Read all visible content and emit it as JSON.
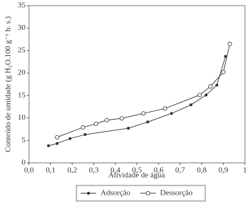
{
  "chart_data": {
    "type": "scatter",
    "x_label": "Atividade de água",
    "y_label": "Conteúdo de umidade (g H₂O.100 g⁻¹ b. s.)",
    "xlim": [
      0,
      1
    ],
    "xticks": [
      {
        "value": 0,
        "label": "0,0"
      },
      {
        "value": 0.1,
        "label": "0,1"
      },
      {
        "value": 0.2,
        "label": "0,2"
      },
      {
        "value": 0.3,
        "label": "0,3"
      },
      {
        "value": 0.4,
        "label": "0,4"
      },
      {
        "value": 0.5,
        "label": "0,5"
      },
      {
        "value": 0.6,
        "label": "0,6"
      },
      {
        "value": 0.7,
        "label": "0,7"
      },
      {
        "value": 0.8,
        "label": "0,8"
      },
      {
        "value": 0.9,
        "label": "0,9"
      },
      1
    ],
    "ylim": [
      0,
      35
    ],
    "yticks": [
      0,
      5,
      10,
      15,
      20,
      25,
      30,
      35
    ],
    "legend": "bottom",
    "series": [
      {
        "name": "Adsorção",
        "color": "#333333",
        "marker": "dot",
        "x": [
          0.09,
          0.13,
          0.19,
          0.26,
          0.46,
          0.55,
          0.66,
          0.75,
          0.82,
          0.87,
          0.91
        ],
        "values": [
          3.8,
          4.3,
          5.4,
          6.3,
          7.7,
          9.1,
          11.0,
          12.9,
          15.1,
          17.3,
          23.7
        ]
      },
      {
        "name": "Dessorção",
        "color": "#333333",
        "marker": "circle",
        "x": [
          0.13,
          0.25,
          0.31,
          0.36,
          0.43,
          0.53,
          0.63,
          0.79,
          0.84,
          0.9,
          0.93
        ],
        "values": [
          5.7,
          7.9,
          8.7,
          9.5,
          9.9,
          11.0,
          12.1,
          15.1,
          17.0,
          20.2,
          26.5
        ]
      }
    ]
  }
}
